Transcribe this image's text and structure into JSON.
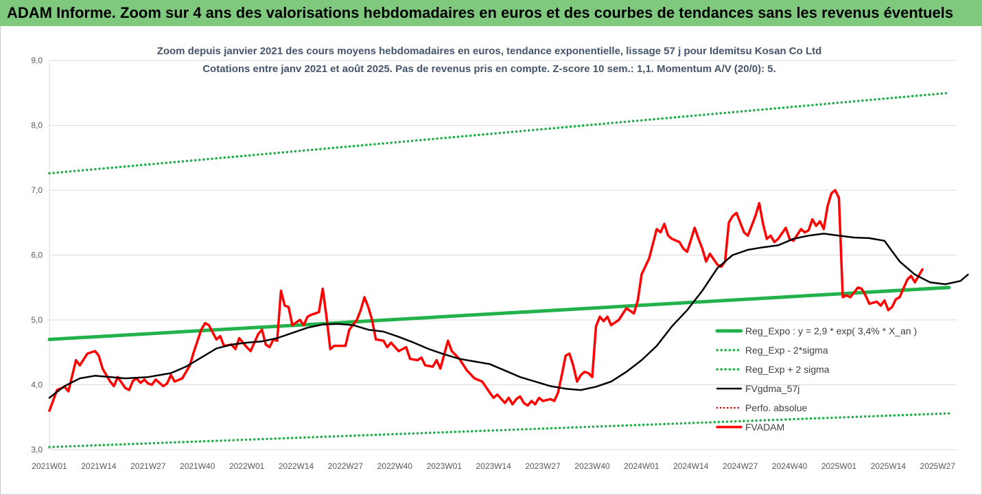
{
  "header": {
    "banner": "ADAM Informe. Zoom sur 4 ans des valorisations hebdomadaires en euros et des courbes de tendances sans les revenus éventuels"
  },
  "chart_data": {
    "type": "line",
    "title": "Zoom depuis janvier 2021 des cours moyens hebdomadaires en euros, tendance exponentielle, lissage 57 j pour Idemitsu Kosan Co Ltd",
    "subtitle": "Cotations entre janv 2021 et août 2025.  Pas de revenus pris en compte. Z-score 10 sem.: 1,1. Momentum A/V (20/0): 5.",
    "xlabel": "",
    "ylabel": "",
    "ylim": [
      3.0,
      9.0
    ],
    "yticks": [
      "3,0",
      "4,0",
      "5,0",
      "6,0",
      "7,0",
      "8,0",
      "9,0"
    ],
    "xticks": [
      "2021W01",
      "2021W14",
      "2021W27",
      "2021W40",
      "2022W01",
      "2022W14",
      "2022W27",
      "2022W40",
      "2023W01",
      "2023W14",
      "2023W27",
      "2023W40",
      "2024W01",
      "2024W14",
      "2024W27",
      "2024W40",
      "2025W01",
      "2025W14",
      "2025W27"
    ],
    "grid": true,
    "legend_position": "bottom-right",
    "colors": {
      "reg": "#22b24c",
      "dots": "#1fb04a",
      "smooth": "#000000",
      "perf": "#c00000",
      "price": "#ff0000"
    },
    "series": [
      {
        "name": "Reg_Expo : y = 2,9 * exp( 3,4% *  X_an )",
        "style": "solid-green",
        "points": [
          [
            0,
            4.7
          ],
          [
            237,
            5.5
          ]
        ]
      },
      {
        "name": "Reg_Exp - 2*sigma",
        "style": "dotted-green",
        "points": [
          [
            0,
            3.04
          ],
          [
            237,
            3.56
          ]
        ]
      },
      {
        "name": "Reg_Exp + 2 sigma",
        "style": "dotted-green",
        "points": [
          [
            0,
            7.26
          ],
          [
            237,
            8.5
          ]
        ]
      },
      {
        "name": "FVgdma_57j",
        "style": "solid-black",
        "points": [
          [
            0,
            3.8
          ],
          [
            4,
            3.98
          ],
          [
            8,
            4.1
          ],
          [
            12,
            4.14
          ],
          [
            20,
            4.1
          ],
          [
            26,
            4.12
          ],
          [
            32,
            4.18
          ],
          [
            36,
            4.28
          ],
          [
            40,
            4.42
          ],
          [
            44,
            4.56
          ],
          [
            48,
            4.62
          ],
          [
            52,
            4.65
          ],
          [
            56,
            4.67
          ],
          [
            60,
            4.72
          ],
          [
            64,
            4.8
          ],
          [
            68,
            4.88
          ],
          [
            72,
            4.93
          ],
          [
            76,
            4.94
          ],
          [
            80,
            4.92
          ],
          [
            84,
            4.85
          ],
          [
            88,
            4.82
          ],
          [
            92,
            4.74
          ],
          [
            96,
            4.65
          ],
          [
            100,
            4.55
          ],
          [
            104,
            4.47
          ],
          [
            108,
            4.4
          ],
          [
            112,
            4.36
          ],
          [
            116,
            4.32
          ],
          [
            120,
            4.22
          ],
          [
            124,
            4.12
          ],
          [
            128,
            4.05
          ],
          [
            132,
            3.98
          ],
          [
            136,
            3.94
          ],
          [
            140,
            3.92
          ],
          [
            144,
            3.97
          ],
          [
            148,
            4.05
          ],
          [
            152,
            4.2
          ],
          [
            156,
            4.38
          ],
          [
            160,
            4.6
          ],
          [
            164,
            4.9
          ],
          [
            168,
            5.15
          ],
          [
            172,
            5.45
          ],
          [
            176,
            5.8
          ],
          [
            180,
            6.0
          ],
          [
            184,
            6.08
          ],
          [
            188,
            6.12
          ],
          [
            192,
            6.15
          ],
          [
            196,
            6.25
          ],
          [
            200,
            6.3
          ],
          [
            204,
            6.33
          ],
          [
            208,
            6.3
          ],
          [
            212,
            6.27
          ],
          [
            216,
            6.26
          ],
          [
            220,
            6.22
          ],
          [
            224,
            5.9
          ],
          [
            228,
            5.7
          ],
          [
            232,
            5.58
          ],
          [
            236,
            5.55
          ],
          [
            240,
            5.6
          ],
          [
            242,
            5.7
          ]
        ]
      },
      {
        "name": "Perfo. absolue",
        "style": "dotted-red",
        "points": []
      },
      {
        "name": "FVADAM",
        "style": "solid-red",
        "points": [
          [
            0,
            3.6
          ],
          [
            2,
            3.92
          ],
          [
            4,
            3.97
          ],
          [
            5,
            3.9
          ],
          [
            7,
            4.38
          ],
          [
            8,
            4.3
          ],
          [
            10,
            4.48
          ],
          [
            12,
            4.52
          ],
          [
            13,
            4.45
          ],
          [
            14,
            4.25
          ],
          [
            16,
            4.05
          ],
          [
            17,
            3.98
          ],
          [
            18,
            4.12
          ],
          [
            20,
            3.95
          ],
          [
            21,
            3.92
          ],
          [
            22,
            4.06
          ],
          [
            23,
            4.1
          ],
          [
            24,
            4.03
          ],
          [
            25,
            4.08
          ],
          [
            26,
            4.02
          ],
          [
            27,
            4.0
          ],
          [
            28,
            4.08
          ],
          [
            30,
            3.98
          ],
          [
            31,
            4.02
          ],
          [
            32,
            4.15
          ],
          [
            33,
            4.05
          ],
          [
            35,
            4.1
          ],
          [
            37,
            4.3
          ],
          [
            38,
            4.5
          ],
          [
            40,
            4.85
          ],
          [
            41,
            4.95
          ],
          [
            42,
            4.92
          ],
          [
            44,
            4.7
          ],
          [
            45,
            4.75
          ],
          [
            46,
            4.6
          ],
          [
            48,
            4.62
          ],
          [
            49,
            4.55
          ],
          [
            50,
            4.72
          ],
          [
            52,
            4.58
          ],
          [
            53,
            4.52
          ],
          [
            55,
            4.78
          ],
          [
            56,
            4.85
          ],
          [
            57,
            4.62
          ],
          [
            58,
            4.58
          ],
          [
            59,
            4.7
          ],
          [
            60,
            4.68
          ],
          [
            61,
            5.45
          ],
          [
            62,
            5.22
          ],
          [
            63,
            5.2
          ],
          [
            64,
            4.92
          ],
          [
            66,
            5.0
          ],
          [
            67,
            4.92
          ],
          [
            68,
            5.05
          ],
          [
            69,
            5.08
          ],
          [
            70,
            5.1
          ],
          [
            71,
            5.12
          ],
          [
            72,
            5.48
          ],
          [
            73,
            5.05
          ],
          [
            74,
            4.55
          ],
          [
            75,
            4.6
          ],
          [
            78,
            4.6
          ],
          [
            79,
            4.85
          ],
          [
            81,
            5.0
          ],
          [
            82,
            5.15
          ],
          [
            83,
            5.35
          ],
          [
            84,
            5.2
          ],
          [
            85,
            5.0
          ],
          [
            86,
            4.7
          ],
          [
            88,
            4.68
          ],
          [
            89,
            4.58
          ],
          [
            90,
            4.65
          ],
          [
            92,
            4.52
          ],
          [
            94,
            4.58
          ],
          [
            95,
            4.4
          ],
          [
            97,
            4.38
          ],
          [
            98,
            4.42
          ],
          [
            99,
            4.3
          ],
          [
            101,
            4.28
          ],
          [
            102,
            4.38
          ],
          [
            103,
            4.25
          ],
          [
            105,
            4.68
          ],
          [
            106,
            4.52
          ],
          [
            108,
            4.4
          ],
          [
            110,
            4.22
          ],
          [
            112,
            4.1
          ],
          [
            114,
            4.05
          ],
          [
            116,
            3.88
          ],
          [
            117,
            3.8
          ],
          [
            118,
            3.85
          ],
          [
            120,
            3.72
          ],
          [
            121,
            3.8
          ],
          [
            122,
            3.7
          ],
          [
            123,
            3.78
          ],
          [
            124,
            3.82
          ],
          [
            125,
            3.72
          ],
          [
            126,
            3.68
          ],
          [
            127,
            3.75
          ],
          [
            128,
            3.7
          ],
          [
            129,
            3.8
          ],
          [
            130,
            3.75
          ],
          [
            132,
            3.78
          ],
          [
            133,
            3.75
          ],
          [
            134,
            3.88
          ],
          [
            135,
            4.15
          ],
          [
            136,
            4.45
          ],
          [
            137,
            4.48
          ],
          [
            138,
            4.3
          ],
          [
            139,
            4.05
          ],
          [
            140,
            4.15
          ],
          [
            141,
            4.2
          ],
          [
            142,
            4.18
          ],
          [
            143,
            4.12
          ],
          [
            144,
            4.9
          ],
          [
            145,
            5.05
          ],
          [
            146,
            4.98
          ],
          [
            147,
            5.05
          ],
          [
            148,
            4.92
          ],
          [
            150,
            5.0
          ],
          [
            152,
            5.18
          ],
          [
            154,
            5.1
          ],
          [
            155,
            5.3
          ],
          [
            156,
            5.7
          ],
          [
            158,
            5.95
          ],
          [
            160,
            6.4
          ],
          [
            161,
            6.35
          ],
          [
            162,
            6.48
          ],
          [
            163,
            6.3
          ],
          [
            164,
            6.25
          ],
          [
            166,
            6.2
          ],
          [
            167,
            6.1
          ],
          [
            168,
            6.05
          ],
          [
            170,
            6.42
          ],
          [
            171,
            6.25
          ],
          [
            172,
            6.1
          ],
          [
            173,
            5.9
          ],
          [
            174,
            6.02
          ],
          [
            176,
            5.85
          ],
          [
            177,
            5.82
          ],
          [
            178,
            5.9
          ],
          [
            179,
            6.5
          ],
          [
            180,
            6.6
          ],
          [
            181,
            6.65
          ],
          [
            182,
            6.5
          ],
          [
            183,
            6.35
          ],
          [
            184,
            6.3
          ],
          [
            186,
            6.6
          ],
          [
            187,
            6.8
          ],
          [
            188,
            6.48
          ],
          [
            189,
            6.25
          ],
          [
            190,
            6.3
          ],
          [
            191,
            6.2
          ],
          [
            192,
            6.25
          ],
          [
            194,
            6.42
          ],
          [
            195,
            6.25
          ],
          [
            196,
            6.22
          ],
          [
            198,
            6.4
          ],
          [
            199,
            6.35
          ],
          [
            200,
            6.38
          ],
          [
            201,
            6.55
          ],
          [
            202,
            6.45
          ],
          [
            203,
            6.52
          ],
          [
            204,
            6.4
          ],
          [
            205,
            6.75
          ],
          [
            206,
            6.95
          ],
          [
            207,
            7.0
          ],
          [
            208,
            6.88
          ],
          [
            209,
            5.35
          ],
          [
            210,
            5.38
          ],
          [
            211,
            5.35
          ],
          [
            213,
            5.5
          ],
          [
            214,
            5.48
          ],
          [
            215,
            5.38
          ],
          [
            216,
            5.25
          ],
          [
            218,
            5.28
          ],
          [
            219,
            5.22
          ],
          [
            220,
            5.3
          ],
          [
            221,
            5.15
          ],
          [
            222,
            5.2
          ],
          [
            223,
            5.32
          ],
          [
            224,
            5.35
          ],
          [
            226,
            5.62
          ],
          [
            227,
            5.68
          ],
          [
            228,
            5.58
          ],
          [
            229,
            5.68
          ],
          [
            230,
            5.78
          ]
        ]
      }
    ]
  }
}
